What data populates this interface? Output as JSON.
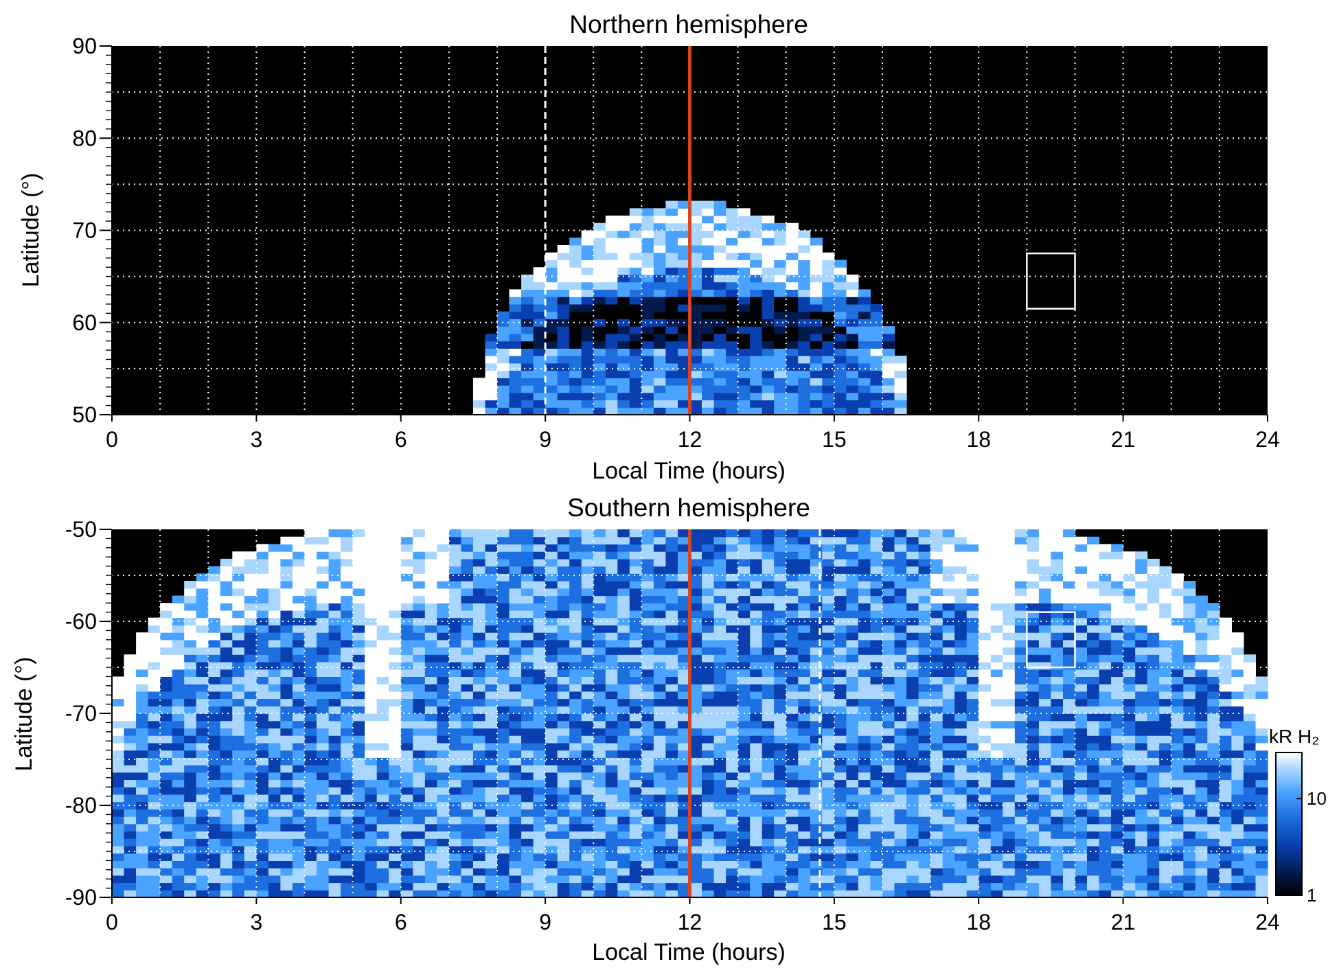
{
  "colors": {
    "background": "#000000",
    "grid": "#ffffff",
    "noon_line": "#d9431e",
    "colormap": [
      "#000000",
      "#001a4d",
      "#0a3fb0",
      "#1e6fe0",
      "#4aa3ff",
      "#a9d6ff",
      "#ffffff"
    ]
  },
  "chart_data": [
    {
      "type": "heatmap",
      "title": "Northern hemisphere",
      "xlabel": "Local Time (hours)",
      "ylabel": "Latitude (°)",
      "xlim": [
        0,
        24
      ],
      "ylim": [
        50,
        90
      ],
      "x_ticks": [
        0,
        3,
        6,
        9,
        12,
        15,
        18,
        21,
        24
      ],
      "x_tick_labels": [
        "0",
        "3",
        "6",
        "9",
        "12",
        "15",
        "18",
        "21",
        "24"
      ],
      "y_ticks": [
        50,
        60,
        70,
        80,
        90
      ],
      "y_tick_labels": [
        "50",
        "60",
        "70",
        "80",
        "90"
      ],
      "grid": true,
      "grid_x_step_hours": 1,
      "grid_y_step_degrees": 5,
      "coverage": "emission observed only on the dayside, dome spanning ~7.5 to ~16.6 h, reaching ~73° latitude at noon",
      "noon_line_x": 12,
      "dashed_line_x": 9,
      "region_box": {
        "x": [
          19,
          20
        ],
        "y": [
          61.5,
          67.5
        ]
      }
    },
    {
      "type": "heatmap",
      "title": "Southern hemisphere",
      "xlabel": "Local Time (hours)",
      "ylabel": "Latitude (°)",
      "xlim": [
        0,
        24
      ],
      "ylim": [
        -90,
        -50
      ],
      "x_ticks": [
        0,
        3,
        6,
        9,
        12,
        15,
        18,
        21,
        24
      ],
      "x_tick_labels": [
        "0",
        "3",
        "6",
        "9",
        "12",
        "15",
        "18",
        "21",
        "24"
      ],
      "y_ticks": [
        -90,
        -80,
        -70,
        -60,
        -50
      ],
      "y_tick_labels": [
        "-90",
        "-80",
        "-70",
        "-60",
        "-50"
      ],
      "grid": true,
      "grid_x_step_hours": 1,
      "grid_y_step_degrees": 5,
      "coverage": "emission observed across all local times near the pole, extending to -50° between ~5 and ~19.5 h",
      "noon_line_x": 12,
      "dashed_line_x": 14.7,
      "region_box": {
        "x": [
          19,
          20
        ],
        "y": [
          -65,
          -59
        ]
      }
    }
  ],
  "colorbar": {
    "unit_label": "kR H₂",
    "scale": "log",
    "range": [
      1,
      30
    ],
    "tick_values": [
      1,
      10
    ],
    "tick_labels": [
      "1",
      "10"
    ]
  }
}
